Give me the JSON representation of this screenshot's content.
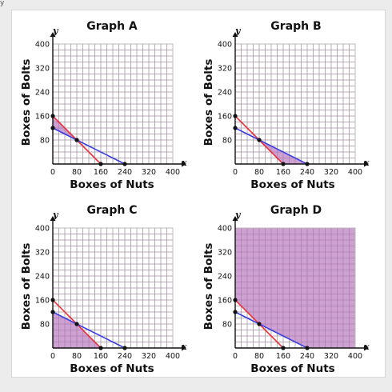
{
  "corner_glyph": "y",
  "colors": {
    "grid": "#b9b9b9",
    "axis": "#111111",
    "red_line": "#e8333a",
    "blue_line": "#3a3ee0",
    "shade_fill": "#c490c9",
    "shade_stroke": "#8a4f8e",
    "point": "#111111"
  },
  "chart_data": [
    {
      "type": "line",
      "title": "Graph A",
      "xlabel": "Boxes of Nuts",
      "ylabel": "Boxes of Bolts",
      "x_var": "x",
      "y_var": "y",
      "xlim": [
        0,
        400
      ],
      "ylim": [
        0,
        400
      ],
      "x_ticks": [
        0,
        80,
        160,
        240,
        320,
        400
      ],
      "y_ticks": [
        80,
        160,
        240,
        320,
        400
      ],
      "grid": true,
      "series": [
        {
          "color": "red",
          "x": [
            0,
            160
          ],
          "y": [
            160,
            0
          ]
        },
        {
          "color": "blue",
          "x": [
            0,
            240
          ],
          "y": [
            120,
            0
          ]
        }
      ],
      "points": [
        [
          0,
          160
        ],
        [
          0,
          120
        ],
        [
          80,
          80
        ],
        [
          160,
          0
        ],
        [
          240,
          0
        ]
      ],
      "shaded_region": [
        [
          0,
          120
        ],
        [
          0,
          160
        ],
        [
          80,
          80
        ]
      ]
    },
    {
      "type": "line",
      "title": "Graph B",
      "xlabel": "Boxes of Nuts",
      "ylabel": "Boxes of Bolts",
      "x_var": "x",
      "y_var": "y",
      "xlim": [
        0,
        400
      ],
      "ylim": [
        0,
        400
      ],
      "x_ticks": [
        0,
        80,
        160,
        240,
        320,
        400
      ],
      "y_ticks": [
        80,
        160,
        240,
        320,
        400
      ],
      "grid": true,
      "series": [
        {
          "color": "red",
          "x": [
            0,
            160
          ],
          "y": [
            160,
            0
          ]
        },
        {
          "color": "blue",
          "x": [
            0,
            240
          ],
          "y": [
            120,
            0
          ]
        }
      ],
      "points": [
        [
          0,
          160
        ],
        [
          0,
          120
        ],
        [
          80,
          80
        ],
        [
          160,
          0
        ],
        [
          240,
          0
        ]
      ],
      "shaded_region": [
        [
          80,
          80
        ],
        [
          160,
          0
        ],
        [
          240,
          0
        ]
      ]
    },
    {
      "type": "line",
      "title": "Graph C",
      "xlabel": "Boxes of Nuts",
      "ylabel": "Boxes of Bolts",
      "x_var": "x",
      "y_var": "y",
      "xlim": [
        0,
        400
      ],
      "ylim": [
        0,
        400
      ],
      "x_ticks": [
        0,
        80,
        160,
        240,
        320,
        400
      ],
      "y_ticks": [
        80,
        160,
        240,
        320,
        400
      ],
      "grid": true,
      "series": [
        {
          "color": "red",
          "x": [
            0,
            160
          ],
          "y": [
            160,
            0
          ]
        },
        {
          "color": "blue",
          "x": [
            0,
            240
          ],
          "y": [
            120,
            0
          ]
        }
      ],
      "points": [
        [
          0,
          160
        ],
        [
          0,
          120
        ],
        [
          80,
          80
        ],
        [
          160,
          0
        ],
        [
          240,
          0
        ]
      ],
      "shaded_region": [
        [
          0,
          0
        ],
        [
          0,
          120
        ],
        [
          80,
          80
        ],
        [
          160,
          0
        ]
      ]
    },
    {
      "type": "line",
      "title": "Graph D",
      "xlabel": "Boxes of Nuts",
      "ylabel": "Boxes of Bolts",
      "x_var": "x",
      "y_var": "y",
      "xlim": [
        0,
        400
      ],
      "ylim": [
        0,
        400
      ],
      "x_ticks": [
        0,
        80,
        160,
        240,
        320,
        400
      ],
      "y_ticks": [
        80,
        160,
        240,
        320,
        400
      ],
      "grid": true,
      "series": [
        {
          "color": "red",
          "x": [
            0,
            160
          ],
          "y": [
            160,
            0
          ]
        },
        {
          "color": "blue",
          "x": [
            0,
            240
          ],
          "y": [
            120,
            0
          ]
        }
      ],
      "points": [
        [
          0,
          160
        ],
        [
          0,
          120
        ],
        [
          80,
          80
        ],
        [
          160,
          0
        ],
        [
          240,
          0
        ]
      ],
      "shaded_region": [
        [
          0,
          160
        ],
        [
          0,
          400
        ],
        [
          400,
          400
        ],
        [
          400,
          0
        ],
        [
          240,
          0
        ],
        [
          80,
          80
        ]
      ]
    }
  ]
}
